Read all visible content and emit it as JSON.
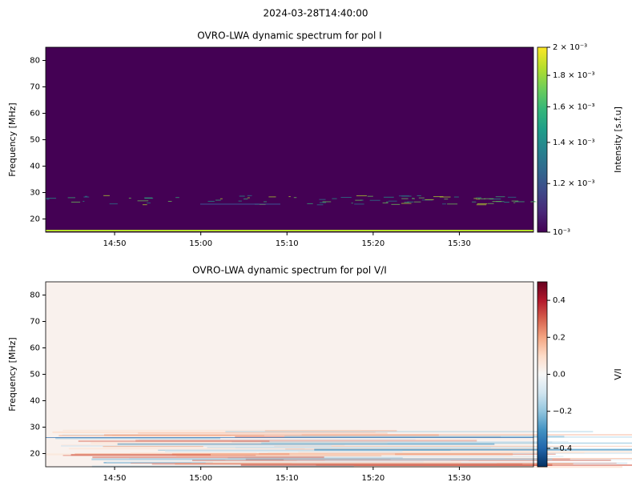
{
  "title": "2024-03-28T14:40:00",
  "chart_data": [
    {
      "type": "heatmap",
      "title": "OVRO-LWA dynamic spectrum for pol I",
      "ylabel": "Frequency [MHz]",
      "xlim": [
        882.0,
        938.6
      ],
      "xticks": [
        {
          "value": 890,
          "label": "14:50"
        },
        {
          "value": 900,
          "label": "15:00"
        },
        {
          "value": 910,
          "label": "15:10"
        },
        {
          "value": 920,
          "label": "15:20"
        },
        {
          "value": 930,
          "label": "15:30"
        }
      ],
      "ylim": [
        15,
        85
      ],
      "yticks": [
        20,
        30,
        40,
        50,
        60,
        70,
        80
      ],
      "colorbar": {
        "label": "Intensity [s.f.u]",
        "colormap": "viridis",
        "scale": "log",
        "lim": [
          0.001,
          0.002
        ],
        "ticks": [
          {
            "value": 0.001,
            "label": "10⁻³"
          },
          {
            "value": 0.0012,
            "label": "1.2 × 10⁻³"
          },
          {
            "value": 0.0014,
            "label": "1.4 × 10⁻³"
          },
          {
            "value": 0.0016,
            "label": "1.6 × 10⁻³"
          },
          {
            "value": 0.0018,
            "label": "1.8 × 10⁻³"
          },
          {
            "value": 0.002,
            "label": "2 × 10⁻³"
          }
        ]
      }
    },
    {
      "type": "heatmap",
      "title": "OVRO-LWA dynamic spectrum for pol V/I",
      "ylabel": "Frequency [MHz]",
      "xlim": [
        882.0,
        938.6
      ],
      "xticks": [
        {
          "value": 890,
          "label": "14:50"
        },
        {
          "value": 900,
          "label": "15:00"
        },
        {
          "value": 910,
          "label": "15:10"
        },
        {
          "value": 920,
          "label": "15:20"
        },
        {
          "value": 930,
          "label": "15:30"
        }
      ],
      "ylim": [
        15,
        85
      ],
      "yticks": [
        20,
        30,
        40,
        50,
        60,
        70,
        80
      ],
      "colorbar": {
        "label": "V/I",
        "colormap": "RdBu_r",
        "scale": "linear",
        "lim": [
          -0.5,
          0.5
        ],
        "ticks": [
          {
            "value": -0.4,
            "label": "−0.4"
          },
          {
            "value": -0.2,
            "label": "−0.2"
          },
          {
            "value": 0,
            "label": "0.0"
          },
          0.2,
          0.4
        ]
      }
    }
  ]
}
